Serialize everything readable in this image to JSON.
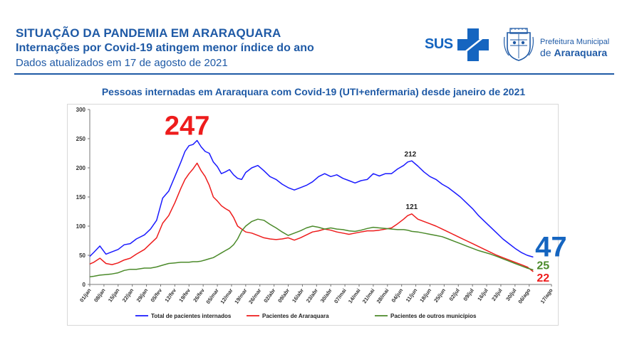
{
  "header": {
    "title": "SITUAÇÃO DA PANDEMIA EM ARARAQUARA",
    "subtitle": "Internações por Covid-19 atingem menor índice do ano",
    "updated": "Dados atualizados em 17 de agosto de 2021"
  },
  "logos": {
    "sus": "SUS",
    "prefeitura_line1": "Prefeitura Municipal",
    "prefeitura_prefix": "de ",
    "prefeitura_city": "Araraquara"
  },
  "colors": {
    "title_blue": "#1f5aa6",
    "total": "#1a1aff",
    "araraquara": "#ee1c1c",
    "outros": "#4b8a2a"
  },
  "chart_data": {
    "type": "line",
    "title": "Pessoas internadas em Araraquara com Covid-19 (UTI+enfermaria) desde janeiro de 2021",
    "x_tick_labels": [
      "01/jan",
      "08/jan",
      "15/jan",
      "22/jan",
      "29/jan",
      "05/fev",
      "12/fev",
      "19/fev",
      "26/fev",
      "05/mar",
      "12/mar",
      "19/mar",
      "26/mar",
      "02/abr",
      "09/abr",
      "16/abr",
      "23/abr",
      "30/abr",
      "07/mai",
      "14/mai",
      "21/mai",
      "28/mai",
      "04/jun",
      "11/jun",
      "18/jun",
      "25/jun",
      "02/jul",
      "09/jul",
      "16/jul",
      "23/jul",
      "30/jul",
      "06/ago",
      "17/ago"
    ],
    "y_ticks": [
      0,
      50,
      100,
      150,
      200,
      250,
      300
    ],
    "ylim": [
      0,
      300
    ],
    "grid": false,
    "legend_position": "bottom",
    "series": [
      {
        "name": "Total de pacientes internados",
        "color": "#1a1aff",
        "points": [
          [
            1,
            48
          ],
          [
            3,
            55
          ],
          [
            6,
            66
          ],
          [
            9,
            52
          ],
          [
            12,
            56
          ],
          [
            15,
            60
          ],
          [
            18,
            68
          ],
          [
            21,
            70
          ],
          [
            24,
            78
          ],
          [
            28,
            85
          ],
          [
            31,
            95
          ],
          [
            34,
            110
          ],
          [
            37,
            148
          ],
          [
            40,
            160
          ],
          [
            43,
            185
          ],
          [
            46,
            210
          ],
          [
            48,
            228
          ],
          [
            50,
            238
          ],
          [
            52,
            240
          ],
          [
            54,
            247
          ],
          [
            56,
            236
          ],
          [
            58,
            228
          ],
          [
            60,
            225
          ],
          [
            62,
            210
          ],
          [
            64,
            202
          ],
          [
            66,
            190
          ],
          [
            68,
            193
          ],
          [
            70,
            197
          ],
          [
            72,
            188
          ],
          [
            74,
            182
          ],
          [
            76,
            180
          ],
          [
            78,
            192
          ],
          [
            81,
            200
          ],
          [
            84,
            204
          ],
          [
            87,
            195
          ],
          [
            90,
            185
          ],
          [
            93,
            180
          ],
          [
            96,
            172
          ],
          [
            99,
            166
          ],
          [
            102,
            162
          ],
          [
            105,
            166
          ],
          [
            108,
            170
          ],
          [
            111,
            176
          ],
          [
            114,
            185
          ],
          [
            117,
            190
          ],
          [
            120,
            185
          ],
          [
            123,
            188
          ],
          [
            126,
            182
          ],
          [
            129,
            178
          ],
          [
            132,
            174
          ],
          [
            135,
            178
          ],
          [
            138,
            180
          ],
          [
            141,
            190
          ],
          [
            144,
            186
          ],
          [
            147,
            190
          ],
          [
            150,
            190
          ],
          [
            153,
            198
          ],
          [
            156,
            204
          ],
          [
            158,
            210
          ],
          [
            160,
            212
          ],
          [
            163,
            203
          ],
          [
            166,
            193
          ],
          [
            169,
            185
          ],
          [
            172,
            180
          ],
          [
            175,
            172
          ],
          [
            178,
            166
          ],
          [
            181,
            158
          ],
          [
            184,
            150
          ],
          [
            187,
            140
          ],
          [
            190,
            130
          ],
          [
            193,
            118
          ],
          [
            196,
            108
          ],
          [
            199,
            98
          ],
          [
            202,
            88
          ],
          [
            205,
            78
          ],
          [
            208,
            70
          ],
          [
            211,
            62
          ],
          [
            214,
            55
          ],
          [
            217,
            50
          ],
          [
            220,
            47
          ]
        ]
      },
      {
        "name": "Pacientes de Araraquara",
        "color": "#ee1c1c",
        "points": [
          [
            1,
            35
          ],
          [
            3,
            38
          ],
          [
            6,
            45
          ],
          [
            9,
            36
          ],
          [
            12,
            34
          ],
          [
            15,
            37
          ],
          [
            18,
            42
          ],
          [
            21,
            45
          ],
          [
            24,
            52
          ],
          [
            28,
            60
          ],
          [
            31,
            70
          ],
          [
            34,
            80
          ],
          [
            37,
            105
          ],
          [
            40,
            118
          ],
          [
            43,
            140
          ],
          [
            46,
            165
          ],
          [
            48,
            180
          ],
          [
            50,
            190
          ],
          [
            52,
            198
          ],
          [
            54,
            208
          ],
          [
            56,
            195
          ],
          [
            58,
            185
          ],
          [
            60,
            170
          ],
          [
            62,
            150
          ],
          [
            64,
            143
          ],
          [
            66,
            135
          ],
          [
            68,
            130
          ],
          [
            70,
            126
          ],
          [
            72,
            115
          ],
          [
            74,
            100
          ],
          [
            76,
            95
          ],
          [
            78,
            90
          ],
          [
            81,
            88
          ],
          [
            84,
            84
          ],
          [
            87,
            80
          ],
          [
            90,
            78
          ],
          [
            93,
            77
          ],
          [
            96,
            78
          ],
          [
            99,
            80
          ],
          [
            102,
            76
          ],
          [
            105,
            80
          ],
          [
            108,
            85
          ],
          [
            111,
            90
          ],
          [
            114,
            92
          ],
          [
            117,
            95
          ],
          [
            120,
            93
          ],
          [
            123,
            90
          ],
          [
            126,
            88
          ],
          [
            129,
            86
          ],
          [
            132,
            88
          ],
          [
            135,
            90
          ],
          [
            138,
            92
          ],
          [
            141,
            92
          ],
          [
            144,
            93
          ],
          [
            147,
            95
          ],
          [
            150,
            97
          ],
          [
            153,
            104
          ],
          [
            156,
            112
          ],
          [
            158,
            118
          ],
          [
            160,
            121
          ],
          [
            163,
            112
          ],
          [
            166,
            108
          ],
          [
            169,
            104
          ],
          [
            172,
            100
          ],
          [
            175,
            95
          ],
          [
            178,
            90
          ],
          [
            181,
            85
          ],
          [
            184,
            80
          ],
          [
            187,
            75
          ],
          [
            190,
            70
          ],
          [
            193,
            65
          ],
          [
            196,
            60
          ],
          [
            199,
            55
          ],
          [
            202,
            50
          ],
          [
            205,
            46
          ],
          [
            208,
            42
          ],
          [
            211,
            38
          ],
          [
            214,
            34
          ],
          [
            217,
            30
          ],
          [
            220,
            22
          ]
        ]
      },
      {
        "name": "Pacientes de outros municípios",
        "color": "#4b8a2a",
        "points": [
          [
            1,
            13
          ],
          [
            3,
            14
          ],
          [
            6,
            16
          ],
          [
            9,
            17
          ],
          [
            12,
            18
          ],
          [
            15,
            20
          ],
          [
            18,
            24
          ],
          [
            21,
            26
          ],
          [
            24,
            26
          ],
          [
            28,
            28
          ],
          [
            31,
            28
          ],
          [
            34,
            30
          ],
          [
            37,
            33
          ],
          [
            40,
            36
          ],
          [
            43,
            37
          ],
          [
            46,
            38
          ],
          [
            48,
            38
          ],
          [
            50,
            38
          ],
          [
            52,
            39
          ],
          [
            54,
            39
          ],
          [
            56,
            40
          ],
          [
            58,
            42
          ],
          [
            60,
            44
          ],
          [
            62,
            46
          ],
          [
            64,
            50
          ],
          [
            66,
            54
          ],
          [
            68,
            58
          ],
          [
            70,
            62
          ],
          [
            72,
            68
          ],
          [
            74,
            78
          ],
          [
            76,
            92
          ],
          [
            78,
            100
          ],
          [
            81,
            108
          ],
          [
            84,
            112
          ],
          [
            87,
            110
          ],
          [
            90,
            103
          ],
          [
            93,
            97
          ],
          [
            96,
            90
          ],
          [
            99,
            84
          ],
          [
            102,
            88
          ],
          [
            105,
            92
          ],
          [
            108,
            97
          ],
          [
            111,
            100
          ],
          [
            114,
            98
          ],
          [
            117,
            95
          ],
          [
            120,
            97
          ],
          [
            123,
            95
          ],
          [
            126,
            94
          ],
          [
            129,
            92
          ],
          [
            132,
            91
          ],
          [
            135,
            93
          ],
          [
            138,
            96
          ],
          [
            141,
            98
          ],
          [
            144,
            97
          ],
          [
            147,
            96
          ],
          [
            150,
            95
          ],
          [
            153,
            94
          ],
          [
            156,
            94
          ],
          [
            158,
            93
          ],
          [
            160,
            91
          ],
          [
            163,
            90
          ],
          [
            166,
            88
          ],
          [
            169,
            86
          ],
          [
            172,
            84
          ],
          [
            175,
            82
          ],
          [
            178,
            78
          ],
          [
            181,
            74
          ],
          [
            184,
            70
          ],
          [
            187,
            66
          ],
          [
            190,
            62
          ],
          [
            193,
            58
          ],
          [
            196,
            55
          ],
          [
            199,
            52
          ],
          [
            202,
            48
          ],
          [
            205,
            44
          ],
          [
            208,
            40
          ],
          [
            211,
            36
          ],
          [
            214,
            32
          ],
          [
            217,
            28
          ],
          [
            220,
            25
          ]
        ]
      }
    ],
    "annotations": [
      {
        "text": "247",
        "color": "#ee1c1c",
        "series": 0,
        "note": "peak total"
      },
      {
        "text": "212",
        "color": "#222222",
        "series": 0
      },
      {
        "text": "121",
        "color": "#222222",
        "series": 1
      },
      {
        "text": "47",
        "color": "#1565c0",
        "series": 0,
        "note": "last total"
      },
      {
        "text": "25",
        "color": "#4b8a2a",
        "series": 2,
        "note": "last outros"
      },
      {
        "text": "22",
        "color": "#ee1c1c",
        "series": 1,
        "note": "last araraquara"
      }
    ]
  }
}
